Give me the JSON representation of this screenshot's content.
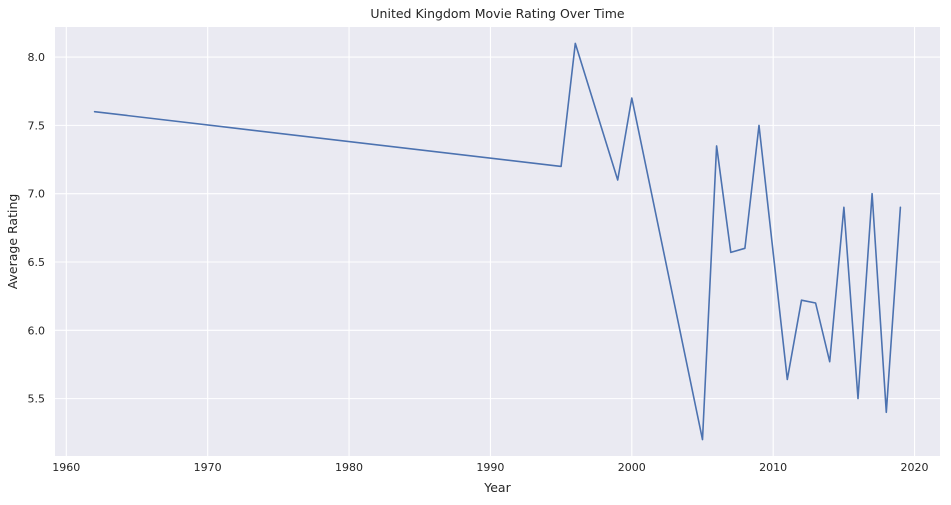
{
  "chart_data": {
    "type": "line",
    "title": "United Kingdom Movie Rating Over Time",
    "xlabel": "Year",
    "ylabel": "Average Rating",
    "xlim": [
      1959.2,
      2021.8
    ],
    "ylim": [
      5.08,
      8.22
    ],
    "xticks": [
      1960,
      1970,
      1980,
      1990,
      2000,
      2010,
      2020
    ],
    "yticks": [
      5.5,
      6.0,
      6.5,
      7.0,
      7.5,
      8.0
    ],
    "ytick_labels": [
      "5.5",
      "6.0",
      "6.5",
      "7.0",
      "7.5",
      "8.0"
    ],
    "grid": true,
    "background": "#eaeaf2",
    "grid_color": "#ffffff",
    "series": [
      {
        "color": "#4c72b0",
        "x": [
          1962,
          1995,
          1996,
          1999,
          2000,
          2005,
          2006,
          2007,
          2008,
          2009,
          2011,
          2012,
          2013,
          2014,
          2015,
          2016,
          2017,
          2018,
          2019
        ],
        "y": [
          7.6,
          7.2,
          8.1,
          7.1,
          7.7,
          5.2,
          7.35,
          6.57,
          6.6,
          7.5,
          5.64,
          6.22,
          6.2,
          5.77,
          6.9,
          5.5,
          7.0,
          5.4,
          6.9
        ]
      }
    ]
  }
}
